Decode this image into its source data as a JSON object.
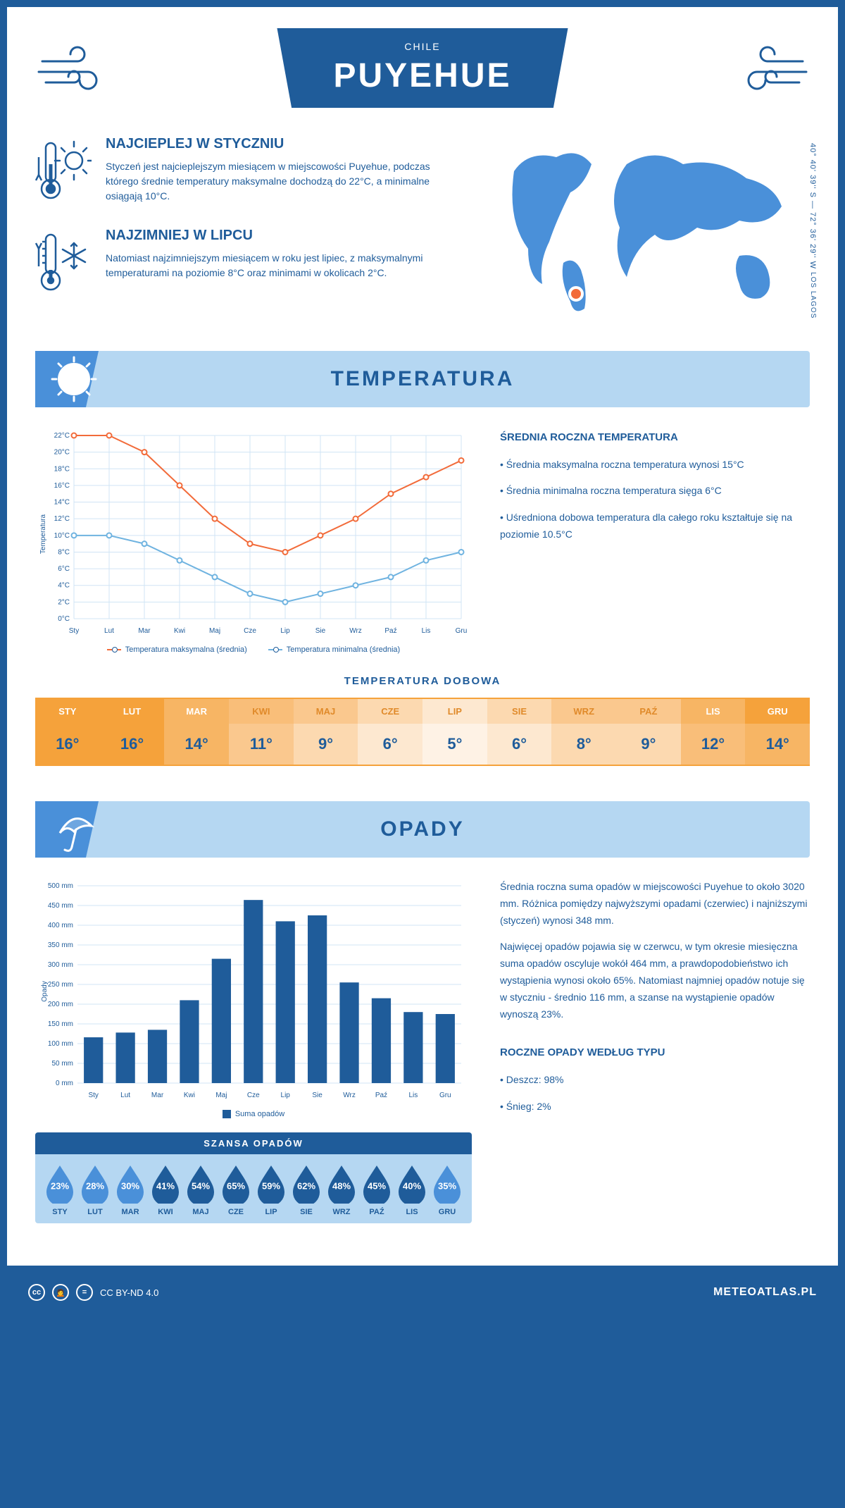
{
  "header": {
    "title": "PUYEHUE",
    "country": "CHILE"
  },
  "coords": {
    "text": "40° 40' 39'' S — 72° 36' 29'' W",
    "region": "LOS LAGOS"
  },
  "facts": {
    "warm": {
      "title": "NAJCIEPLEJ W STYCZNIU",
      "text": "Styczeń jest najcieplejszym miesiącem w miejscowości Puyehue, podczas którego średnie temperatury maksymalne dochodzą do 22°C, a minimalne osiągają 10°C."
    },
    "cold": {
      "title": "NAJZIMNIEJ W LIPCU",
      "text": "Natomiast najzimniejszym miesiącem w roku jest lipiec, z maksymalnymi temperaturami na poziomie 8°C oraz minimami w okolicach 2°C."
    }
  },
  "sections": {
    "temperature_label": "TEMPERATURA",
    "opady_label": "OPADY"
  },
  "temp_chart": {
    "type": "line",
    "months": [
      "Sty",
      "Lut",
      "Mar",
      "Kwi",
      "Maj",
      "Cze",
      "Lip",
      "Sie",
      "Wrz",
      "Paź",
      "Lis",
      "Gru"
    ],
    "max_series": [
      22,
      22,
      20,
      16,
      12,
      9,
      8,
      10,
      12,
      15,
      17,
      19
    ],
    "min_series": [
      10,
      10,
      9,
      7,
      5,
      3,
      2,
      3,
      4,
      5,
      7,
      8
    ],
    "max_color": "#f26b3a",
    "min_color": "#6fb3e0",
    "ylim": [
      0,
      22
    ],
    "ytick_step": 2,
    "y_axis_label": "Temperatura",
    "grid_color": "#d0e4f5",
    "legend_max": "Temperatura maksymalna (średnia)",
    "legend_min": "Temperatura minimalna (średnia)"
  },
  "temp_text": {
    "heading": "ŚREDNIA ROCZNA TEMPERATURA",
    "b1": "Średnia maksymalna roczna temperatura wynosi 15°C",
    "b2": "Średnia minimalna roczna temperatura sięga 6°C",
    "b3": "Uśredniona dobowa temperatura dla całego roku kształtuje się na poziomie 10.5°C"
  },
  "daily_temp": {
    "title": "TEMPERATURA DOBOWA",
    "months": [
      "STY",
      "LUT",
      "MAR",
      "KWI",
      "MAJ",
      "CZE",
      "LIP",
      "SIE",
      "WRZ",
      "PAŹ",
      "LIS",
      "GRU"
    ],
    "values": [
      "16°",
      "16°",
      "14°",
      "11°",
      "9°",
      "6°",
      "5°",
      "6°",
      "8°",
      "9°",
      "12°",
      "14°"
    ],
    "colors": [
      "#f5a23b",
      "#f5a23b",
      "#f7b564",
      "#fac88e",
      "#fcd9b0",
      "#fde8d0",
      "#fef2e5",
      "#fde8d0",
      "#fcd9b0",
      "#fcd9b0",
      "#f9be79",
      "#f7b564"
    ],
    "header_colors": [
      "#f5a23b",
      "#f5a23b",
      "#f7b564",
      "#f9be79",
      "#fac88e",
      "#fcd9b0",
      "#fde8d0",
      "#fcd9b0",
      "#fac88e",
      "#fac88e",
      "#f7b564",
      "#f5a23b"
    ],
    "text_colors": [
      "#fff",
      "#fff",
      "#fff",
      "#e08a2a",
      "#e08a2a",
      "#e08a2a",
      "#e08a2a",
      "#e08a2a",
      "#e08a2a",
      "#e08a2a",
      "#fff",
      "#fff"
    ]
  },
  "rain_chart": {
    "type": "bar",
    "months": [
      "Sty",
      "Lut",
      "Mar",
      "Kwi",
      "Maj",
      "Cze",
      "Lip",
      "Sie",
      "Wrz",
      "Paź",
      "Lis",
      "Gru"
    ],
    "values": [
      116,
      128,
      135,
      210,
      315,
      464,
      410,
      425,
      255,
      215,
      180,
      175
    ],
    "bar_color": "#1f5c9a",
    "ylim": [
      0,
      500
    ],
    "ytick_step": 50,
    "y_axis_label": "Opady",
    "legend": "Suma opadów"
  },
  "rain_text": {
    "p1": "Średnia roczna suma opadów w miejscowości Puyehue to około 3020 mm. Różnica pomiędzy najwyższymi opadami (czerwiec) i najniższymi (styczeń) wynosi 348 mm.",
    "p2": "Najwięcej opadów pojawia się w czerwcu, w tym okresie miesięczna suma opadów oscyluje wokół 464 mm, a prawdopodobieństwo ich wystąpienia wynosi około 65%. Natomiast najmniej opadów notuje się w styczniu - średnio 116 mm, a szanse na wystąpienie opadów wynoszą 23%.",
    "types_heading": "ROCZNE OPADY WEDŁUG TYPU",
    "type_rain": "Deszcz: 98%",
    "type_snow": "Śnieg: 2%"
  },
  "rain_chance": {
    "title": "SZANSA OPADÓW",
    "months": [
      "STY",
      "LUT",
      "MAR",
      "KWI",
      "MAJ",
      "CZE",
      "LIP",
      "SIE",
      "WRZ",
      "PAŹ",
      "LIS",
      "GRU"
    ],
    "pcts": [
      "23%",
      "28%",
      "30%",
      "41%",
      "54%",
      "65%",
      "59%",
      "62%",
      "48%",
      "45%",
      "40%",
      "35%"
    ],
    "light_color": "#4a90d9",
    "dark_color": "#1f5c9a"
  },
  "footer": {
    "license": "CC BY-ND 4.0",
    "brand": "METEOATLAS.PL"
  }
}
